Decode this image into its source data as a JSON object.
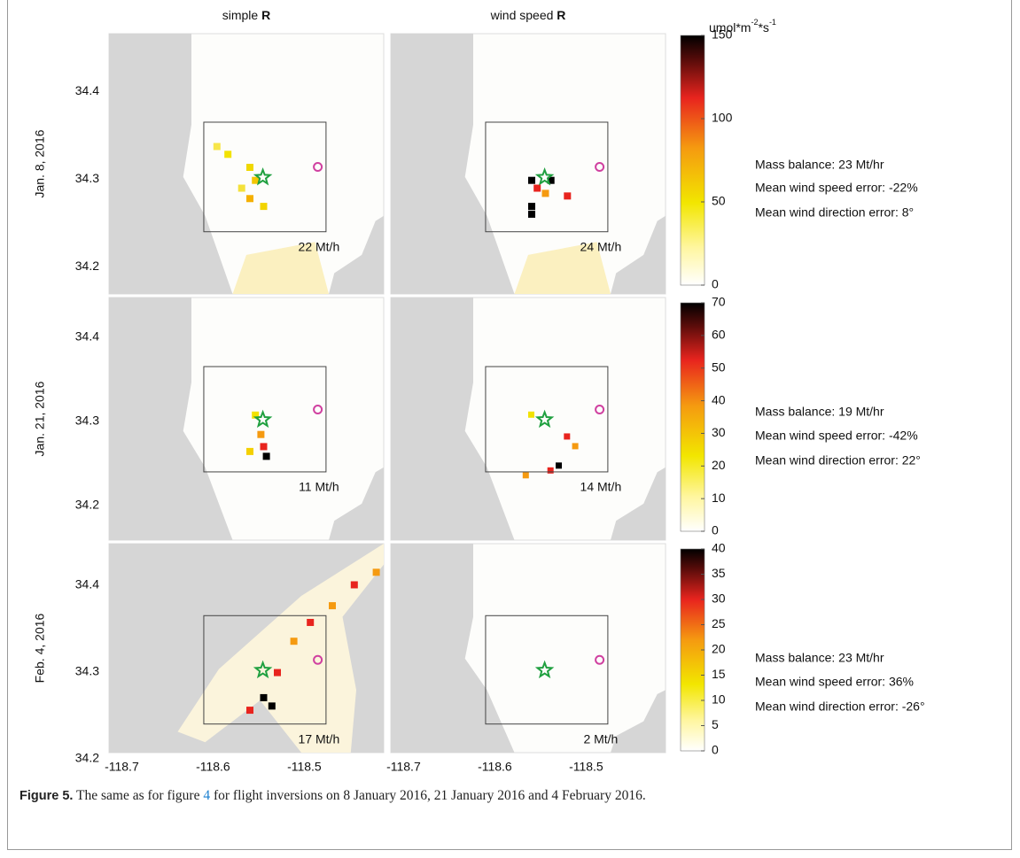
{
  "figure": {
    "columns": [
      {
        "label": "simple",
        "symbol": "R"
      },
      {
        "label": "wind speed",
        "symbol": "R"
      }
    ],
    "unit": {
      "base": "umol*m",
      "exp1": "-2",
      "mid": "*s",
      "exp2": "-1"
    },
    "x_axis": {
      "range": [
        -118.714,
        -118.413
      ],
      "ticks": [
        -118.7,
        -118.6,
        -118.5
      ]
    },
    "rows": [
      {
        "label": "Jan. 8, 2016",
        "lat_range": [
          34.169,
          34.466
        ],
        "yticks": [
          34.4,
          34.3,
          34.2
        ],
        "panels": [
          "22 Mt/h",
          "24 Mt/h"
        ],
        "colorbar": {
          "lim": [
            0,
            150
          ],
          "ticks": [
            0,
            50,
            100,
            150
          ]
        },
        "stats": [
          "Mass balance:  23 Mt/hr",
          "Mean wind speed error:  -22%",
          "Mean wind direction error:  8°"
        ]
      },
      {
        "label": "Jan. 21, 2016",
        "lat_range": [
          34.159,
          34.447
        ],
        "yticks": [
          34.4,
          34.3,
          34.2
        ],
        "panels": [
          "11 Mt/h",
          "14 Mt/h"
        ],
        "colorbar": {
          "lim": [
            0,
            70
          ],
          "ticks": [
            0,
            10,
            20,
            30,
            40,
            50,
            60,
            70
          ]
        },
        "stats": [
          "Mass balance:  19 Mt/hr",
          "Mean wind speed error:  -42%",
          "Mean wind direction error:  22°"
        ]
      },
      {
        "label": "Feb. 4, 2016",
        "lat_range": [
          34.207,
          34.448
        ],
        "yticks": [
          34.4,
          34.3,
          34.2
        ],
        "panels": [
          "17 Mt/h",
          "2 Mt/h"
        ],
        "colorbar": {
          "lim": [
            0,
            40
          ],
          "ticks": [
            0,
            5,
            10,
            15,
            20,
            25,
            30,
            35,
            40
          ]
        },
        "stats": [
          "Mass balance:  23 Mt/hr",
          "Mean wind speed error:  36%",
          "Mean wind direction error:  -26°"
        ]
      }
    ]
  },
  "caption": {
    "label": "Figure 5.",
    "text_before": " The same as for figure ",
    "ref": "4",
    "text_after": " for flight inversions on 8 January 2016, 21 January 2016 and 4 February 2016."
  }
}
